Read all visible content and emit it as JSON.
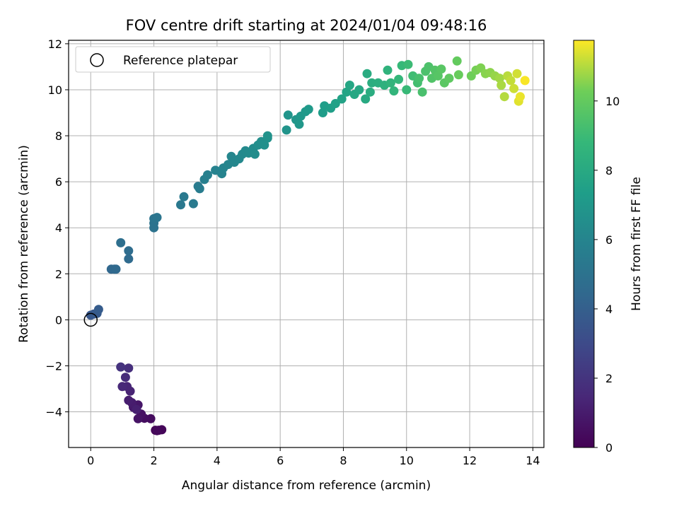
{
  "chart_data": {
    "type": "scatter",
    "title": "FOV centre drift starting at 2024/01/04 09:48:16",
    "xlabel": "Angular distance from reference (arcmin)",
    "ylabel": "Rotation from reference (arcmin)",
    "xlim": [
      -0.7,
      14.35
    ],
    "ylim": [
      -5.55,
      12.15
    ],
    "xticks": [
      0,
      2,
      4,
      6,
      8,
      10,
      12,
      14
    ],
    "yticks": [
      -4,
      -2,
      0,
      2,
      4,
      6,
      8,
      10,
      12
    ],
    "grid": true,
    "legend": {
      "position": "top-left",
      "entries": [
        "Reference platepar"
      ]
    },
    "colorbar": {
      "label": "Hours from first FF file",
      "range": [
        0,
        11.75
      ],
      "ticks": [
        0,
        2,
        4,
        6,
        8,
        10
      ],
      "colormap": "viridis"
    },
    "reference_point": {
      "x": 0,
      "y": 0
    },
    "series": [
      {
        "points": [
          [
            2.05,
            -4.8,
            0.1
          ],
          [
            2.15,
            -4.8,
            0.15
          ],
          [
            2.25,
            -4.78,
            0.2
          ],
          [
            2.1,
            -4.82,
            0.25
          ],
          [
            1.9,
            -4.3,
            0.4
          ],
          [
            1.7,
            -4.28,
            0.5
          ],
          [
            1.6,
            -4.1,
            0.6
          ],
          [
            1.5,
            -4.3,
            0.7
          ],
          [
            1.5,
            -3.7,
            0.8
          ],
          [
            1.35,
            -3.8,
            0.9
          ],
          [
            1.3,
            -3.6,
            1.0
          ],
          [
            1.2,
            -3.5,
            1.1
          ],
          [
            1.45,
            -3.9,
            1.15
          ],
          [
            1.25,
            -3.1,
            1.3
          ],
          [
            1.15,
            -2.9,
            1.4
          ],
          [
            1.0,
            -2.9,
            1.5
          ],
          [
            1.1,
            -2.5,
            1.65
          ],
          [
            1.2,
            -2.1,
            1.8
          ],
          [
            0.95,
            -2.05,
            1.95
          ],
          [
            0.0,
            0.2,
            3.6
          ],
          [
            0.1,
            0.25,
            3.7
          ],
          [
            0.2,
            0.28,
            3.75
          ],
          [
            0.25,
            0.45,
            3.85
          ],
          [
            0.65,
            2.2,
            4.4
          ],
          [
            0.75,
            2.2,
            4.45
          ],
          [
            0.8,
            2.2,
            4.5
          ],
          [
            1.2,
            2.65,
            4.6
          ],
          [
            1.2,
            3.0,
            4.7
          ],
          [
            0.95,
            3.35,
            4.8
          ],
          [
            2.0,
            4.0,
            5.0
          ],
          [
            2.0,
            4.2,
            5.05
          ],
          [
            2.0,
            4.4,
            5.1
          ],
          [
            2.1,
            4.45,
            5.15
          ],
          [
            2.85,
            5.0,
            5.3
          ],
          [
            2.95,
            5.35,
            5.35
          ],
          [
            3.25,
            5.05,
            5.4
          ],
          [
            3.4,
            5.8,
            5.5
          ],
          [
            3.45,
            5.7,
            5.55
          ],
          [
            3.6,
            6.1,
            5.7
          ],
          [
            3.7,
            6.3,
            5.75
          ],
          [
            3.95,
            6.5,
            5.85
          ],
          [
            4.15,
            6.35,
            5.95
          ],
          [
            4.2,
            6.6,
            6.0
          ],
          [
            4.35,
            6.75,
            6.05
          ],
          [
            4.45,
            7.1,
            6.1
          ],
          [
            4.55,
            6.85,
            6.15
          ],
          [
            4.7,
            7.0,
            6.2
          ],
          [
            4.8,
            7.2,
            6.25
          ],
          [
            4.9,
            7.35,
            6.3
          ],
          [
            5.0,
            7.25,
            6.35
          ],
          [
            5.15,
            7.45,
            6.4
          ],
          [
            5.2,
            7.2,
            6.45
          ],
          [
            5.3,
            7.6,
            6.5
          ],
          [
            5.4,
            7.75,
            6.55
          ],
          [
            5.5,
            7.6,
            6.6
          ],
          [
            5.6,
            7.9,
            6.65
          ],
          [
            5.6,
            8.0,
            6.7
          ],
          [
            6.2,
            8.25,
            6.8
          ],
          [
            6.25,
            8.9,
            6.85
          ],
          [
            6.5,
            8.7,
            6.95
          ],
          [
            6.6,
            8.5,
            7.0
          ],
          [
            6.65,
            8.85,
            7.05
          ],
          [
            6.8,
            9.05,
            7.1
          ],
          [
            6.9,
            9.15,
            7.15
          ],
          [
            7.35,
            9.0,
            7.3
          ],
          [
            7.4,
            9.3,
            7.35
          ],
          [
            7.6,
            9.2,
            7.4
          ],
          [
            7.75,
            9.4,
            7.5
          ],
          [
            7.95,
            9.6,
            7.6
          ],
          [
            8.1,
            9.9,
            7.7
          ],
          [
            8.2,
            10.2,
            7.8
          ],
          [
            8.35,
            9.8,
            7.85
          ],
          [
            8.5,
            10.0,
            7.9
          ],
          [
            8.7,
            9.6,
            8.0
          ],
          [
            8.75,
            10.7,
            8.1
          ],
          [
            8.85,
            9.9,
            8.15
          ],
          [
            8.9,
            10.3,
            8.2
          ],
          [
            9.1,
            10.3,
            8.3
          ],
          [
            9.3,
            10.2,
            8.4
          ],
          [
            9.4,
            10.85,
            8.5
          ],
          [
            9.5,
            10.3,
            8.6
          ],
          [
            9.6,
            9.95,
            8.65
          ],
          [
            9.75,
            10.45,
            8.75
          ],
          [
            9.85,
            11.05,
            8.85
          ],
          [
            10.0,
            10.0,
            8.9
          ],
          [
            10.05,
            11.1,
            9.0
          ],
          [
            10.2,
            10.6,
            9.1
          ],
          [
            10.35,
            10.3,
            9.2
          ],
          [
            10.4,
            10.5,
            9.3
          ],
          [
            10.5,
            9.9,
            9.35
          ],
          [
            10.6,
            10.8,
            9.4
          ],
          [
            10.7,
            11.0,
            9.45
          ],
          [
            10.8,
            10.5,
            9.55
          ],
          [
            10.9,
            10.85,
            9.6
          ],
          [
            11.0,
            10.6,
            9.7
          ],
          [
            11.1,
            10.9,
            9.75
          ],
          [
            11.2,
            10.3,
            9.8
          ],
          [
            11.35,
            10.5,
            9.9
          ],
          [
            11.6,
            11.25,
            10.0
          ],
          [
            11.65,
            10.65,
            10.1
          ],
          [
            12.05,
            10.6,
            10.25
          ],
          [
            12.2,
            10.85,
            10.35
          ],
          [
            12.35,
            10.95,
            10.45
          ],
          [
            12.5,
            10.7,
            10.55
          ],
          [
            12.65,
            10.75,
            10.6
          ],
          [
            12.8,
            10.6,
            10.7
          ],
          [
            12.95,
            10.5,
            10.8
          ],
          [
            13.0,
            10.2,
            10.9
          ],
          [
            13.1,
            9.7,
            11.0
          ],
          [
            13.2,
            10.6,
            11.05
          ],
          [
            13.3,
            10.4,
            11.15
          ],
          [
            13.4,
            10.05,
            11.25
          ],
          [
            13.5,
            10.7,
            11.3
          ],
          [
            13.55,
            9.5,
            11.45
          ],
          [
            13.6,
            9.7,
            11.55
          ],
          [
            13.75,
            10.4,
            11.7
          ]
        ]
      }
    ]
  }
}
